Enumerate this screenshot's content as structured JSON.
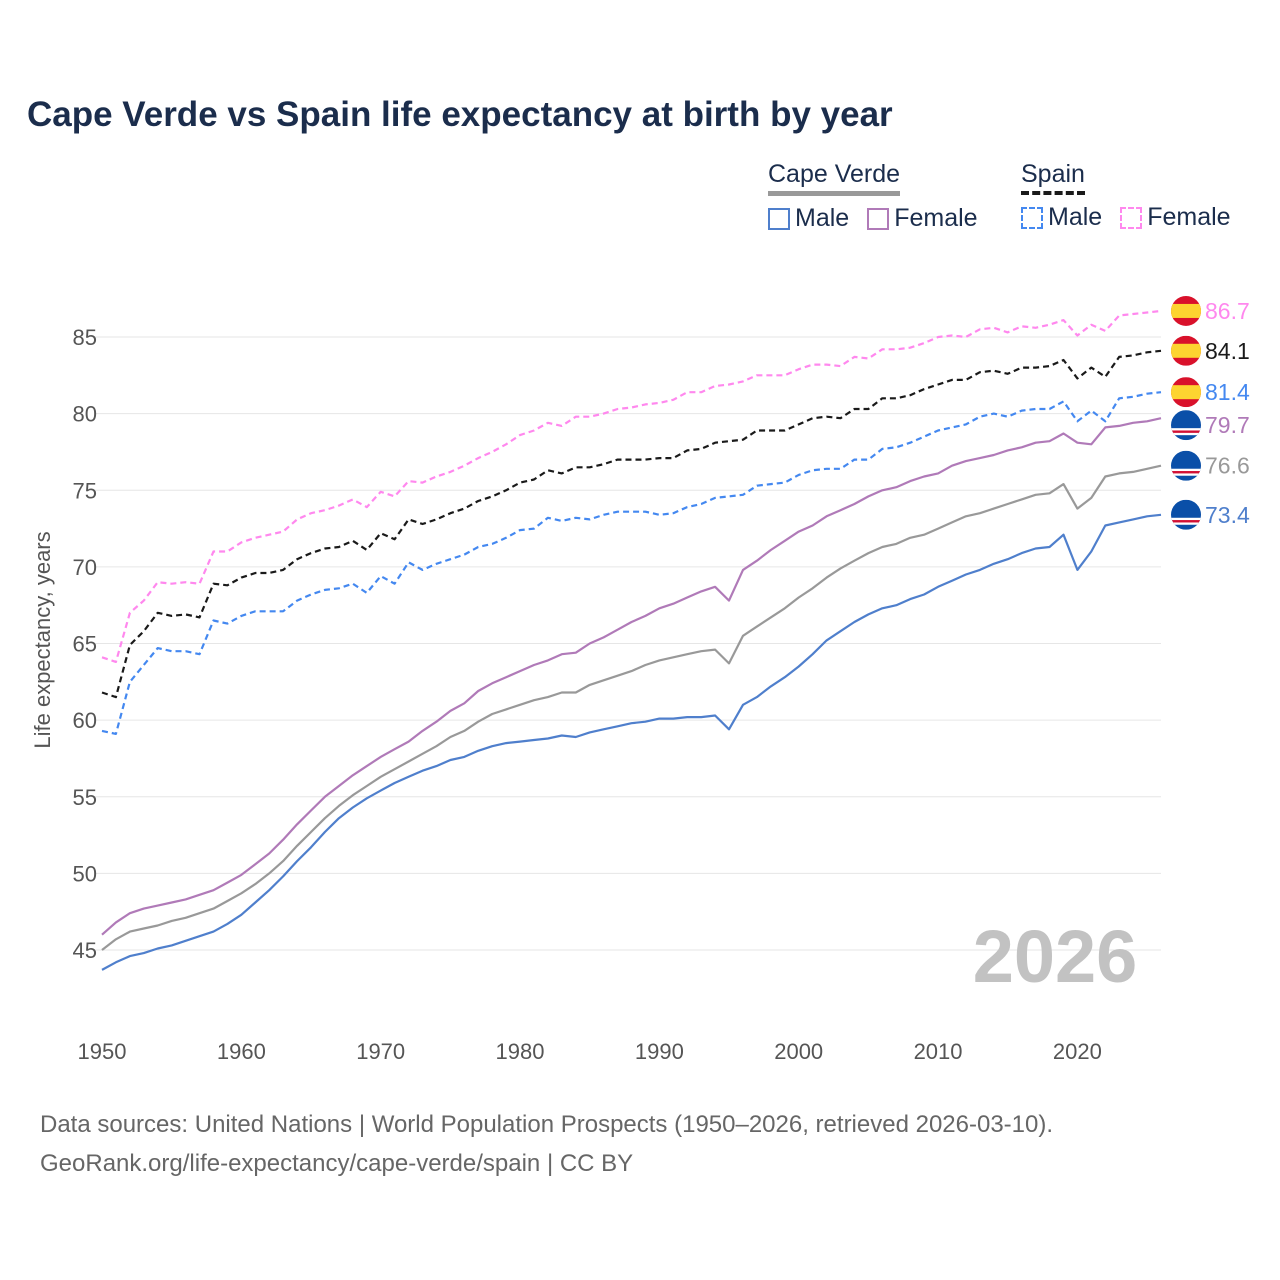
{
  "title": "Cape Verde vs Spain life expectancy at birth by year",
  "legend": {
    "groups": [
      {
        "name": "Cape Verde",
        "items": [
          "Male",
          "Female"
        ]
      },
      {
        "name": "Spain",
        "items": [
          "Male",
          "Female"
        ]
      }
    ]
  },
  "source": {
    "line1": "Data sources: United Nations | World Population Prospects (1950–2026, retrieved 2026-03-10).",
    "line2": "GeoRank.org/life-expectancy/cape-verde/spain | CC BY"
  },
  "chart_data": {
    "type": "line",
    "title": "Cape Verde vs Spain life expectancy at birth by year",
    "xlabel": "",
    "ylabel": "Life expectancy, years",
    "xlim": [
      1950,
      2026
    ],
    "ylim": [
      42,
      88
    ],
    "xticks": [
      "1950",
      "1960",
      "1970",
      "1980",
      "1990",
      "2000",
      "2010",
      "2020"
    ],
    "yticks": [
      "45",
      "50",
      "55",
      "60",
      "65",
      "70",
      "75",
      "80",
      "85"
    ],
    "grid": true,
    "year_annotation": "2026",
    "x_start": 1950,
    "series": [
      {
        "name": "Spain Female",
        "country": "Spain",
        "flag": "spain",
        "color": "#ff88ee",
        "dashed": true,
        "end_label": "86.7",
        "values": [
          64.1,
          63.8,
          67.0,
          67.8,
          69.0,
          68.9,
          69.0,
          68.9,
          71.0,
          71.0,
          71.6,
          71.9,
          72.1,
          72.3,
          73.1,
          73.5,
          73.7,
          74.0,
          74.4,
          73.9,
          74.9,
          74.6,
          75.6,
          75.5,
          75.9,
          76.2,
          76.6,
          77.1,
          77.5,
          78.0,
          78.6,
          78.9,
          79.4,
          79.2,
          79.8,
          79.8,
          80.0,
          80.3,
          80.4,
          80.6,
          80.7,
          80.9,
          81.4,
          81.4,
          81.8,
          81.9,
          82.1,
          82.5,
          82.5,
          82.5,
          82.9,
          83.2,
          83.2,
          83.1,
          83.7,
          83.6,
          84.2,
          84.2,
          84.3,
          84.6,
          85.0,
          85.1,
          85.0,
          85.5,
          85.6,
          85.3,
          85.7,
          85.6,
          85.8,
          86.1,
          85.1,
          85.8,
          85.4,
          86.4,
          86.5,
          86.6,
          86.7
        ]
      },
      {
        "name": "Spain",
        "country": "Spain",
        "flag": "spain",
        "color": "#1a1a1a",
        "dashed": true,
        "end_label": "84.1",
        "values": [
          61.8,
          61.5,
          64.9,
          65.8,
          67.0,
          66.8,
          66.9,
          66.7,
          68.9,
          68.8,
          69.3,
          69.6,
          69.6,
          69.8,
          70.5,
          70.9,
          71.2,
          71.3,
          71.7,
          71.1,
          72.2,
          71.8,
          73.1,
          72.8,
          73.1,
          73.5,
          73.8,
          74.3,
          74.6,
          75.0,
          75.5,
          75.7,
          76.3,
          76.1,
          76.5,
          76.5,
          76.7,
          77.0,
          77.0,
          77.0,
          77.1,
          77.1,
          77.6,
          77.7,
          78.1,
          78.2,
          78.3,
          78.9,
          78.9,
          78.9,
          79.3,
          79.7,
          79.8,
          79.7,
          80.3,
          80.3,
          81.0,
          81.0,
          81.2,
          81.6,
          81.9,
          82.2,
          82.2,
          82.7,
          82.8,
          82.6,
          83.0,
          83.0,
          83.1,
          83.5,
          82.3,
          83.0,
          82.4,
          83.7,
          83.8,
          84.0,
          84.1
        ]
      },
      {
        "name": "Spain Male",
        "country": "Spain",
        "flag": "spain",
        "color": "#4488f0",
        "dashed": true,
        "end_label": "81.4",
        "values": [
          59.3,
          59.1,
          62.5,
          63.6,
          64.7,
          64.5,
          64.5,
          64.3,
          66.5,
          66.3,
          66.8,
          67.1,
          67.1,
          67.1,
          67.8,
          68.2,
          68.5,
          68.6,
          68.9,
          68.3,
          69.4,
          68.9,
          70.3,
          69.8,
          70.2,
          70.5,
          70.8,
          71.3,
          71.5,
          71.9,
          72.4,
          72.5,
          73.2,
          73.0,
          73.2,
          73.1,
          73.4,
          73.6,
          73.6,
          73.6,
          73.4,
          73.5,
          73.9,
          74.1,
          74.5,
          74.6,
          74.7,
          75.3,
          75.4,
          75.5,
          76.0,
          76.3,
          76.4,
          76.4,
          77.0,
          77.0,
          77.7,
          77.8,
          78.1,
          78.5,
          78.9,
          79.1,
          79.3,
          79.8,
          80.0,
          79.8,
          80.2,
          80.3,
          80.3,
          80.8,
          79.5,
          80.2,
          79.5,
          81.0,
          81.1,
          81.3,
          81.4
        ]
      },
      {
        "name": "Cape Verde Female",
        "country": "Cape Verde",
        "flag": "cape-verde",
        "color": "#b07ab8",
        "dashed": false,
        "end_label": "79.7",
        "values": [
          46.0,
          46.8,
          47.4,
          47.7,
          47.9,
          48.1,
          48.3,
          48.6,
          48.9,
          49.4,
          49.9,
          50.6,
          51.3,
          52.2,
          53.2,
          54.1,
          55.0,
          55.7,
          56.4,
          57.0,
          57.6,
          58.1,
          58.6,
          59.3,
          59.9,
          60.6,
          61.1,
          61.9,
          62.4,
          62.8,
          63.2,
          63.6,
          63.9,
          64.3,
          64.4,
          65.0,
          65.4,
          65.9,
          66.4,
          66.8,
          67.3,
          67.6,
          68.0,
          68.4,
          68.7,
          67.8,
          69.8,
          70.4,
          71.1,
          71.7,
          72.3,
          72.7,
          73.3,
          73.7,
          74.1,
          74.6,
          75.0,
          75.2,
          75.6,
          75.9,
          76.1,
          76.6,
          76.9,
          77.1,
          77.3,
          77.6,
          77.8,
          78.1,
          78.2,
          78.7,
          78.1,
          78.0,
          79.1,
          79.2,
          79.4,
          79.5,
          79.7
        ]
      },
      {
        "name": "Cape Verde",
        "country": "Cape Verde",
        "flag": "cape-verde",
        "color": "#999999",
        "dashed": false,
        "end_label": "76.6",
        "values": [
          45.0,
          45.7,
          46.2,
          46.4,
          46.6,
          46.9,
          47.1,
          47.4,
          47.7,
          48.2,
          48.7,
          49.3,
          50.0,
          50.8,
          51.8,
          52.7,
          53.6,
          54.4,
          55.1,
          55.7,
          56.3,
          56.8,
          57.3,
          57.8,
          58.3,
          58.9,
          59.3,
          59.9,
          60.4,
          60.7,
          61.0,
          61.3,
          61.5,
          61.8,
          61.8,
          62.3,
          62.6,
          62.9,
          63.2,
          63.6,
          63.9,
          64.1,
          64.3,
          64.5,
          64.6,
          63.7,
          65.5,
          66.1,
          66.7,
          67.3,
          68.0,
          68.6,
          69.3,
          69.9,
          70.4,
          70.9,
          71.3,
          71.5,
          71.9,
          72.1,
          72.5,
          72.9,
          73.3,
          73.5,
          73.8,
          74.1,
          74.4,
          74.7,
          74.8,
          75.4,
          73.8,
          74.5,
          75.9,
          76.1,
          76.2,
          76.4,
          76.6
        ]
      },
      {
        "name": "Cape Verde Male",
        "country": "Cape Verde",
        "flag": "cape-verde",
        "color": "#4f7fcc",
        "dashed": false,
        "end_label": "73.4",
        "values": [
          43.7,
          44.2,
          44.6,
          44.8,
          45.1,
          45.3,
          45.6,
          45.9,
          46.2,
          46.7,
          47.3,
          48.1,
          48.9,
          49.8,
          50.8,
          51.7,
          52.7,
          53.6,
          54.3,
          54.9,
          55.4,
          55.9,
          56.3,
          56.7,
          57.0,
          57.4,
          57.6,
          58.0,
          58.3,
          58.5,
          58.6,
          58.7,
          58.8,
          59.0,
          58.9,
          59.2,
          59.4,
          59.6,
          59.8,
          59.9,
          60.1,
          60.1,
          60.2,
          60.2,
          60.3,
          59.4,
          61.0,
          61.5,
          62.2,
          62.8,
          63.5,
          64.3,
          65.2,
          65.8,
          66.4,
          66.9,
          67.3,
          67.5,
          67.9,
          68.2,
          68.7,
          69.1,
          69.5,
          69.8,
          70.2,
          70.5,
          70.9,
          71.2,
          71.3,
          72.1,
          69.8,
          71.0,
          72.7,
          72.9,
          73.1,
          73.3,
          73.4
        ]
      }
    ]
  }
}
